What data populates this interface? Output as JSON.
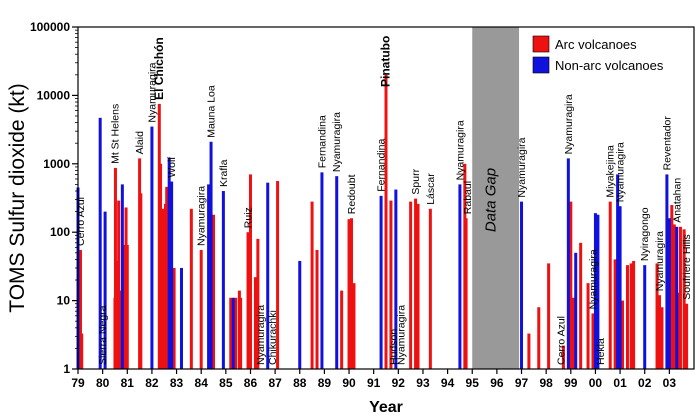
{
  "chart_data": {
    "type": "bar",
    "ylabel": "TOMS Sulfur dioxide (kt)",
    "xlabel": "Year",
    "yscale": "log",
    "ylim": [
      1,
      100000
    ],
    "xlim": [
      1979,
      2004
    ],
    "y_ticks": [
      "1",
      "10",
      "100",
      "1000",
      "10000",
      "100000"
    ],
    "x_ticks": [
      "79",
      "80",
      "81",
      "82",
      "83",
      "84",
      "85",
      "86",
      "87",
      "88",
      "89",
      "90",
      "91",
      "92",
      "93",
      "94",
      "95",
      "96",
      "97",
      "98",
      "99",
      "00",
      "01",
      "02",
      "03"
    ],
    "data_gap": {
      "label": "Data Gap",
      "x_start": 1995.0,
      "x_end": 1996.9
    },
    "legend": [
      {
        "name": "Arc volcanoes",
        "color": "#ee1111"
      },
      {
        "name": "Non-arc volcanoes",
        "color": "#1111dd"
      }
    ],
    "series": [
      {
        "name": "Arc volcanoes",
        "color": "#ee1111",
        "points": [
          {
            "x": 1979.1,
            "y": 55
          },
          {
            "x": 1979.15,
            "y": 3.3
          },
          {
            "x": 1980.5,
            "y": 11
          },
          {
            "x": 1980.52,
            "y": 870
          },
          {
            "x": 1980.6,
            "y": 38
          },
          {
            "x": 1980.65,
            "y": 290
          },
          {
            "x": 1980.72,
            "y": 14
          },
          {
            "x": 1980.85,
            "y": 65
          },
          {
            "x": 1980.95,
            "y": 230
          },
          {
            "x": 1981.0,
            "y": 65
          },
          {
            "x": 1981.5,
            "y": 1200
          },
          {
            "x": 1981.55,
            "y": 370
          },
          {
            "x": 1982.3,
            "y": 7500
          },
          {
            "x": 1982.35,
            "y": 1000
          },
          {
            "x": 1982.38,
            "y": 110
          },
          {
            "x": 1982.45,
            "y": 220
          },
          {
            "x": 1982.55,
            "y": 260
          },
          {
            "x": 1982.6,
            "y": 460
          },
          {
            "x": 1982.75,
            "y": 16
          },
          {
            "x": 1982.8,
            "y": 3.5
          },
          {
            "x": 1982.9,
            "y": 30
          },
          {
            "x": 1983.6,
            "y": 220
          },
          {
            "x": 1984.0,
            "y": 55
          },
          {
            "x": 1984.5,
            "y": 180
          },
          {
            "x": 1985.2,
            "y": 11
          },
          {
            "x": 1985.4,
            "y": 11
          },
          {
            "x": 1985.55,
            "y": 14
          },
          {
            "x": 1985.6,
            "y": 11
          },
          {
            "x": 1985.9,
            "y": 100
          },
          {
            "x": 1986.0,
            "y": 700
          },
          {
            "x": 1986.2,
            "y": 22
          },
          {
            "x": 1986.3,
            "y": 80
          },
          {
            "x": 1987.1,
            "y": 560
          },
          {
            "x": 1988.5,
            "y": 280
          },
          {
            "x": 1988.7,
            "y": 55
          },
          {
            "x": 1989.7,
            "y": 14
          },
          {
            "x": 1990.0,
            "y": 155
          },
          {
            "x": 1990.1,
            "y": 160
          },
          {
            "x": 1990.2,
            "y": 18
          },
          {
            "x": 1991.5,
            "y": 20000
          },
          {
            "x": 1991.7,
            "y": 290
          },
          {
            "x": 1992.5,
            "y": 280
          },
          {
            "x": 1992.7,
            "y": 310
          },
          {
            "x": 1992.8,
            "y": 260
          },
          {
            "x": 1993.3,
            "y": 220
          },
          {
            "x": 1994.7,
            "y": 1000
          },
          {
            "x": 1994.75,
            "y": 160
          },
          {
            "x": 1997.3,
            "y": 3.3
          },
          {
            "x": 1997.7,
            "y": 8
          },
          {
            "x": 1998.1,
            "y": 35
          },
          {
            "x": 1998.7,
            "y": 2.2
          },
          {
            "x": 1999.0,
            "y": 280
          },
          {
            "x": 1999.1,
            "y": 11
          },
          {
            "x": 1999.4,
            "y": 70
          },
          {
            "x": 1999.7,
            "y": 18
          },
          {
            "x": 1999.9,
            "y": 6.5
          },
          {
            "x": 2000.6,
            "y": 280
          },
          {
            "x": 2000.8,
            "y": 40
          },
          {
            "x": 2000.9,
            "y": 33
          },
          {
            "x": 2001.1,
            "y": 10
          },
          {
            "x": 2001.3,
            "y": 33
          },
          {
            "x": 2001.45,
            "y": 35
          },
          {
            "x": 2001.55,
            "y": 38
          },
          {
            "x": 2002.5,
            "y": 35
          },
          {
            "x": 2002.6,
            "y": 12
          },
          {
            "x": 2002.7,
            "y": 8
          },
          {
            "x": 2003.1,
            "y": 250
          },
          {
            "x": 2003.2,
            "y": 130
          },
          {
            "x": 2003.35,
            "y": 13
          },
          {
            "x": 2003.45,
            "y": 120
          },
          {
            "x": 2003.6,
            "y": 110
          },
          {
            "x": 2003.7,
            "y": 9
          }
        ]
      },
      {
        "name": "Non-arc volcanoes",
        "color": "#1111dd",
        "points": [
          {
            "x": 1979.0,
            "y": 450
          },
          {
            "x": 1979.9,
            "y": 4700
          },
          {
            "x": 1980.1,
            "y": 200
          },
          {
            "x": 1980.8,
            "y": 500
          },
          {
            "x": 1982.0,
            "y": 3500
          },
          {
            "x": 1982.7,
            "y": 1200
          },
          {
            "x": 1982.8,
            "y": 550
          },
          {
            "x": 1983.2,
            "y": 30
          },
          {
            "x": 1984.3,
            "y": 500
          },
          {
            "x": 1984.4,
            "y": 2100
          },
          {
            "x": 1984.9,
            "y": 400
          },
          {
            "x": 1985.3,
            "y": 11
          },
          {
            "x": 1986.7,
            "y": 530
          },
          {
            "x": 1988.0,
            "y": 38
          },
          {
            "x": 1988.9,
            "y": 750
          },
          {
            "x": 1989.5,
            "y": 660
          },
          {
            "x": 1991.3,
            "y": 340
          },
          {
            "x": 1991.9,
            "y": 420
          },
          {
            "x": 1994.5,
            "y": 500
          },
          {
            "x": 1997.0,
            "y": 280
          },
          {
            "x": 1998.9,
            "y": 1200
          },
          {
            "x": 1999.2,
            "y": 50
          },
          {
            "x": 2000.0,
            "y": 190
          },
          {
            "x": 2000.1,
            "y": 180
          },
          {
            "x": 2000.9,
            "y": 700
          },
          {
            "x": 2001.0,
            "y": 240
          },
          {
            "x": 2002.0,
            "y": 33
          },
          {
            "x": 2002.9,
            "y": 700
          },
          {
            "x": 2003.0,
            "y": 160
          },
          {
            "x": 2003.3,
            "y": 120
          }
        ]
      }
    ],
    "annotations": [
      {
        "text": "Cerro Azul",
        "x": 1979.1,
        "bold": false
      },
      {
        "text": "Sierra Negra",
        "x": 1980.0,
        "bold": false
      },
      {
        "text": "Mt St Helens",
        "x": 1980.5,
        "bold": false
      },
      {
        "text": "Alaid",
        "x": 1981.5,
        "bold": false
      },
      {
        "text": "Nyamuragira",
        "x": 1982.0,
        "bold": false
      },
      {
        "text": "El Chichón",
        "x": 1982.3,
        "bold": true
      },
      {
        "text": "Wolf",
        "x": 1982.8,
        "bold": false
      },
      {
        "text": "Nyamuragira",
        "x": 1984.0,
        "bold": false
      },
      {
        "text": "Mauna Loa",
        "x": 1984.4,
        "bold": false
      },
      {
        "text": "Krafla",
        "x": 1984.9,
        "bold": false
      },
      {
        "text": "Ruiz",
        "x": 1985.9,
        "bold": false
      },
      {
        "text": "Nyamuragira",
        "x": 1986.4,
        "bold": false
      },
      {
        "text": "Chikurachki",
        "x": 1986.9,
        "bold": false
      },
      {
        "text": "Fernandina",
        "x": 1988.9,
        "bold": false
      },
      {
        "text": "Nyamuragira",
        "x": 1989.5,
        "bold": false
      },
      {
        "text": "Redoubt",
        "x": 1990.1,
        "bold": false
      },
      {
        "text": "Fernandina",
        "x": 1991.3,
        "bold": false
      },
      {
        "text": "Pinatubo",
        "x": 1991.5,
        "bold": true
      },
      {
        "text": "Hudson",
        "x": 1991.8,
        "bold": false
      },
      {
        "text": "Nyamuragira",
        "x": 1992.1,
        "bold": false
      },
      {
        "text": "Spurr",
        "x": 1992.7,
        "bold": false
      },
      {
        "text": "Láscar",
        "x": 1993.3,
        "bold": false
      },
      {
        "text": "Nyamuragira",
        "x": 1994.5,
        "bold": false
      },
      {
        "text": "Rabaul",
        "x": 1994.8,
        "bold": false
      },
      {
        "text": "Nyamuragira",
        "x": 1997.0,
        "bold": false
      },
      {
        "text": "Cerro Azul",
        "x": 1998.6,
        "bold": false
      },
      {
        "text": "Nyamuragira",
        "x": 1998.9,
        "bold": false
      },
      {
        "text": "Nyamuragira",
        "x": 1999.9,
        "bold": false
      },
      {
        "text": "Hekla",
        "x": 2000.2,
        "bold": false
      },
      {
        "text": "Miyakejima",
        "x": 2000.6,
        "bold": false
      },
      {
        "text": "Nyamuragira",
        "x": 2001.0,
        "bold": false
      },
      {
        "text": "Nyiragongo",
        "x": 2002.0,
        "bold": false
      },
      {
        "text": "Nyamuragira",
        "x": 2002.6,
        "bold": false
      },
      {
        "text": "Reventador",
        "x": 2002.9,
        "bold": false
      },
      {
        "text": "Anatahan",
        "x": 2003.3,
        "bold": false
      },
      {
        "text": "Soufriere Hills",
        "x": 2003.7,
        "bold": false
      }
    ]
  }
}
